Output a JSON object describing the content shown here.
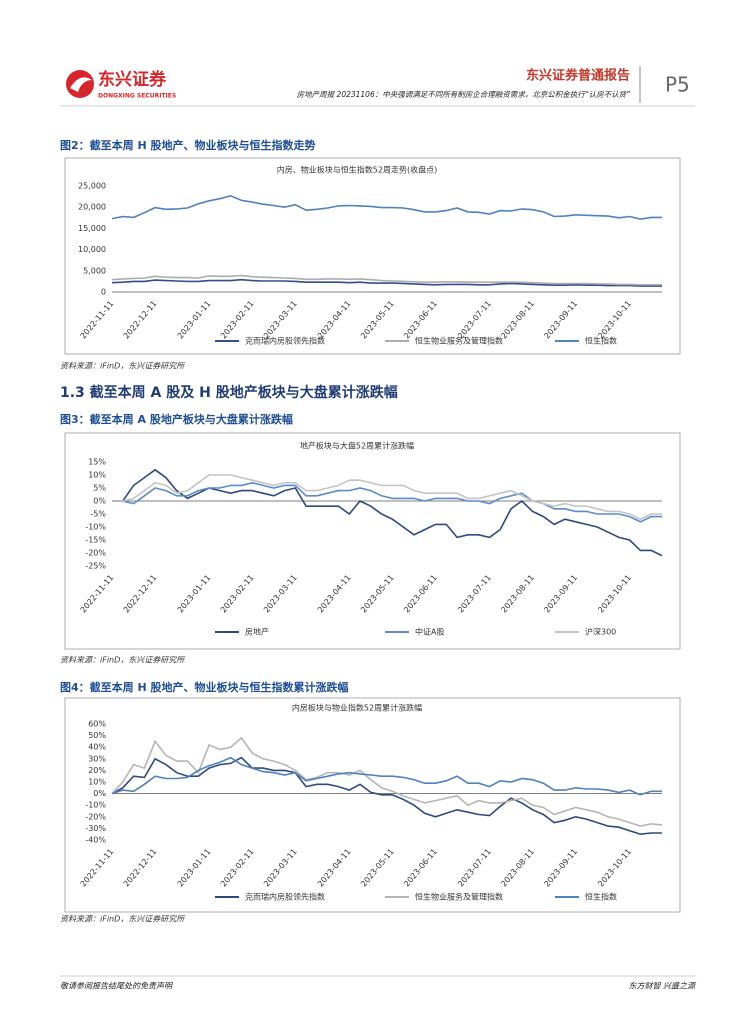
{
  "header": {
    "logo_cn": "东兴证券",
    "logo_en": "DONGXING SECURITIES",
    "report_title": "房地产周报 20231106：中央强调满足不同所有制房企合理融资需求，北京公积金执行“认房不认贷”",
    "report_type": "东兴证券普通报告",
    "page": "P5"
  },
  "section_title": "1.3 截至本周 A 股及 H 股地产板块与大盘累计涨跌幅",
  "figures": [
    {
      "caption": "图2：截至本周 H 股地产、物业板块与恒生指数走势",
      "source": "资料来源：iFinD，东兴证券研究所"
    },
    {
      "caption": "图3：截至本周 A 股地产板块与大盘累计涨跌幅",
      "source": "资料来源：iFinD，东兴证券研究所"
    },
    {
      "caption": "图4：截至本周 H 股地产、物业板块与恒生指数累计涨跌幅",
      "source": "资料来源：iFinD，东兴证券研究所"
    }
  ],
  "footer": {
    "left": "敬请参阅报告结尾处的免责声明",
    "right": "东方财智 兴盛之源"
  },
  "chart_data": [
    {
      "type": "line",
      "title": "内房、物业板块与恒生指数52周走势(收盘点)",
      "categories": [
        "2022-11-11",
        null,
        null,
        null,
        "2022-12-11",
        null,
        null,
        null,
        null,
        "2023-01-11",
        null,
        null,
        null,
        "2023-02-11",
        null,
        null,
        null,
        "2023-03-11",
        null,
        null,
        null,
        null,
        "2023-04-11",
        null,
        null,
        null,
        "2023-05-11",
        null,
        null,
        null,
        "2023-06-11",
        null,
        null,
        null,
        null,
        "2023-07-11",
        null,
        null,
        null,
        "2023-08-11",
        null,
        null,
        null,
        "2023-09-11",
        null,
        null,
        null,
        null,
        "2023-10-11",
        null,
        null,
        null
      ],
      "ylim": [
        0,
        25000
      ],
      "yticks": [
        0,
        {
          "value": 5000,
          "label": "5,000"
        },
        {
          "value": 10000,
          "label": "10,000"
        },
        {
          "value": 15000,
          "label": "15,000"
        },
        {
          "value": 20000,
          "label": "20,000"
        },
        {
          "value": 25000,
          "label": "25,000"
        }
      ],
      "series": [
        {
          "name": "克而瑞内房股领先指数",
          "color": "#2f4f8a",
          "values": [
            2200,
            2300,
            2500,
            2500,
            2800,
            2700,
            2600,
            2500,
            2500,
            2700,
            2700,
            2700,
            2900,
            2700,
            2600,
            2600,
            2600,
            2500,
            2300,
            2300,
            2300,
            2300,
            2200,
            2300,
            2100,
            2100,
            2100,
            2000,
            1900,
            1800,
            1700,
            1800,
            1800,
            1800,
            1700,
            1700,
            1900,
            2000,
            1900,
            1800,
            1700,
            1600,
            1600,
            1700,
            1600,
            1600,
            1500,
            1500,
            1500,
            1400,
            1400,
            1400
          ]
        },
        {
          "name": "恒生物业服务及管理指数",
          "color": "#ababab",
          "values": [
            2900,
            3100,
            3200,
            3300,
            3700,
            3500,
            3400,
            3400,
            3300,
            3800,
            3700,
            3700,
            3900,
            3600,
            3500,
            3400,
            3300,
            3200,
            3000,
            3000,
            3100,
            3100,
            3000,
            3100,
            2900,
            2700,
            2600,
            2500,
            2400,
            2300,
            2300,
            2400,
            2400,
            2300,
            2300,
            2300,
            2300,
            2300,
            2300,
            2200,
            2100,
            2000,
            2000,
            2000,
            2000,
            1900,
            1900,
            1800,
            1800,
            1700,
            1700,
            1700
          ]
        },
        {
          "name": "恒生指数",
          "color": "#4f81bd",
          "values": [
            17300,
            17800,
            17600,
            18700,
            19900,
            19500,
            19600,
            19800,
            20800,
            21500,
            22000,
            22700,
            21600,
            21200,
            20700,
            20400,
            20000,
            20600,
            19300,
            19500,
            19800,
            20300,
            20400,
            20300,
            20200,
            19900,
            19900,
            19800,
            19400,
            18900,
            18900,
            19200,
            19800,
            18900,
            18800,
            18400,
            19200,
            19100,
            19600,
            19400,
            18900,
            17800,
            17900,
            18200,
            18100,
            18000,
            17900,
            17500,
            17800,
            17200,
            17600,
            17600
          ]
        }
      ]
    },
    {
      "type": "line",
      "title": "地产板块与大盘52周累计涨跌幅",
      "categories": [
        "2022-11-11",
        null,
        null,
        null,
        "2022-12-11",
        null,
        null,
        null,
        null,
        "2023-01-11",
        null,
        null,
        null,
        "2023-02-11",
        null,
        null,
        null,
        "2023-03-11",
        null,
        null,
        null,
        null,
        "2023-04-11",
        null,
        null,
        null,
        "2023-05-11",
        null,
        null,
        null,
        "2023-06-11",
        null,
        null,
        null,
        null,
        "2023-07-11",
        null,
        null,
        null,
        "2023-08-11",
        null,
        null,
        null,
        "2023-09-11",
        null,
        null,
        null,
        null,
        "2023-10-11",
        null,
        null,
        null
      ],
      "ylim": [
        -25,
        15
      ],
      "yticks": [
        {
          "value": -25,
          "label": "-25%"
        },
        {
          "value": -20,
          "label": "-20%"
        },
        {
          "value": -15,
          "label": "-15%"
        },
        {
          "value": -10,
          "label": "-10%"
        },
        {
          "value": -5,
          "label": "-5%"
        },
        {
          "value": 0,
          "label": "0%"
        },
        {
          "value": 5,
          "label": "5%"
        },
        {
          "value": 10,
          "label": "10%"
        },
        {
          "value": 15,
          "label": "15%"
        }
      ],
      "series": [
        {
          "name": "房地产",
          "color": "#2e4a7d",
          "values": [
            0,
            0,
            6,
            9,
            12,
            9,
            4,
            1,
            3,
            5,
            4,
            3,
            4,
            4,
            3,
            2,
            4,
            5,
            -2,
            -2,
            -2,
            -2,
            -5,
            0,
            -2,
            -5,
            -7,
            -10,
            -13,
            -11,
            -9,
            -9,
            -14,
            -13,
            -13,
            -14,
            -11,
            -3,
            0,
            -4,
            -6,
            -9,
            -7,
            -8,
            -9,
            -10,
            -12,
            -14,
            -15,
            -19,
            -19,
            -21
          ]
        },
        {
          "name": "中证A股",
          "color": "#5b8bc9",
          "values": [
            0,
            0,
            -1,
            2,
            5,
            4,
            2,
            2,
            4,
            5,
            5,
            6,
            6,
            7,
            6,
            5,
            6,
            6,
            2,
            2,
            3,
            4,
            4,
            5,
            4,
            2,
            1,
            1,
            1,
            0,
            1,
            1,
            1,
            0,
            0,
            -1,
            1,
            2,
            3,
            0,
            -1,
            -3,
            -3,
            -4,
            -4,
            -5,
            -5,
            -5,
            -6,
            -8,
            -6,
            -6
          ]
        },
        {
          "name": "沪深300",
          "color": "#c4c4c4",
          "values": [
            0,
            0,
            1,
            4,
            7,
            6,
            3,
            4,
            7,
            10,
            10,
            10,
            9,
            8,
            7,
            6,
            7,
            7,
            4,
            4,
            5,
            6,
            8,
            8,
            7,
            6,
            6,
            6,
            4,
            3,
            3,
            3,
            3,
            1,
            1,
            2,
            3,
            4,
            2,
            0,
            -1,
            -2,
            -1,
            -2,
            -2,
            -3,
            -4,
            -4,
            -5,
            -7,
            -5,
            -5
          ]
        }
      ]
    },
    {
      "type": "line",
      "title": "内房板块与物业指数52周累计涨跌幅",
      "categories": [
        "2022-11-11",
        null,
        null,
        null,
        "2022-12-11",
        null,
        null,
        null,
        null,
        "2023-01-11",
        null,
        null,
        null,
        "2023-02-11",
        null,
        null,
        null,
        "2023-03-11",
        null,
        null,
        null,
        null,
        "2023-04-11",
        null,
        null,
        null,
        "2023-05-11",
        null,
        null,
        null,
        "2023-06-11",
        null,
        null,
        null,
        null,
        "2023-07-11",
        null,
        null,
        null,
        "2023-08-11",
        null,
        null,
        null,
        "2023-09-11",
        null,
        null,
        null,
        null,
        "2023-10-11",
        null,
        null,
        null
      ],
      "ylim": [
        -40,
        60
      ],
      "yticks": [
        {
          "value": -40,
          "label": "-40%"
        },
        {
          "value": -30,
          "label": "-30%"
        },
        {
          "value": -20,
          "label": "-20%"
        },
        {
          "value": -10,
          "label": "-10%"
        },
        {
          "value": 0,
          "label": "0%"
        },
        {
          "value": 10,
          "label": "10%"
        },
        {
          "value": 20,
          "label": "20%"
        },
        {
          "value": 30,
          "label": "30%"
        },
        {
          "value": 40,
          "label": "40%"
        },
        {
          "value": 50,
          "label": "50%"
        },
        {
          "value": 60,
          "label": "60%"
        }
      ],
      "series": [
        {
          "name": "克而瑞内房股领先指数",
          "color": "#2e4a7d",
          "values": [
            0,
            5,
            15,
            14,
            30,
            25,
            18,
            15,
            15,
            22,
            25,
            26,
            31,
            22,
            22,
            20,
            20,
            18,
            6,
            8,
            8,
            6,
            3,
            8,
            1,
            -1,
            -1,
            -5,
            -10,
            -17,
            -20,
            -17,
            -14,
            -16,
            -18,
            -19,
            -11,
            -4,
            -8,
            -14,
            -18,
            -25,
            -23,
            -20,
            -22,
            -25,
            -28,
            -29,
            -32,
            -35,
            -34,
            -34
          ]
        },
        {
          "name": "恒生物业服务及管理指数",
          "color": "#b5b5b5",
          "values": [
            0,
            10,
            25,
            22,
            45,
            33,
            28,
            28,
            18,
            42,
            38,
            40,
            48,
            35,
            30,
            28,
            25,
            20,
            12,
            14,
            18,
            18,
            16,
            20,
            12,
            5,
            2,
            -2,
            -5,
            -8,
            -6,
            -4,
            -2,
            -10,
            -6,
            -8,
            -8,
            -6,
            -4,
            -10,
            -12,
            -18,
            -15,
            -12,
            -14,
            -16,
            -20,
            -22,
            -25,
            -28,
            -26,
            -27
          ]
        },
        {
          "name": "恒生指数",
          "color": "#4f81bd",
          "values": [
            0,
            3,
            2,
            8,
            15,
            13,
            13,
            14,
            20,
            24,
            27,
            31,
            25,
            22,
            19,
            18,
            16,
            18,
            11,
            13,
            15,
            17,
            18,
            17,
            16,
            15,
            15,
            14,
            12,
            9,
            9,
            11,
            15,
            9,
            9,
            6,
            11,
            10,
            13,
            12,
            9,
            3,
            3,
            5,
            4,
            4,
            3,
            1,
            3,
            -1,
            2,
            2
          ]
        }
      ]
    }
  ]
}
